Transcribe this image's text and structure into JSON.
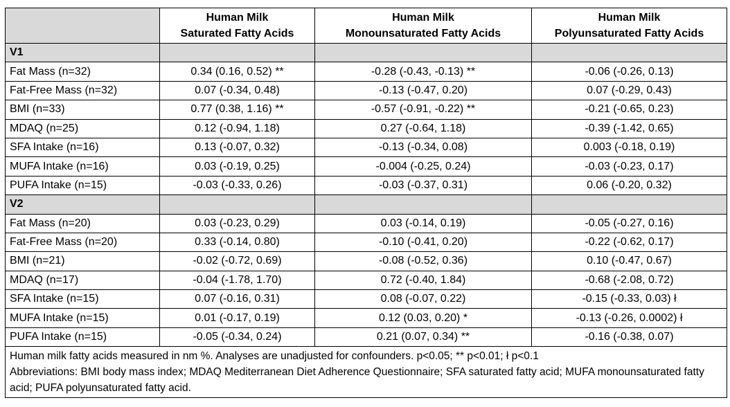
{
  "header": {
    "col1": [
      "Human Milk",
      "Saturated Fatty Acids"
    ],
    "col2": [
      "Human Milk",
      "Monounsaturated Fatty Acids"
    ],
    "col3": [
      "Human Milk",
      "Polyunsaturated Fatty Acids"
    ]
  },
  "sections": [
    {
      "title": "V1",
      "rows": [
        {
          "label": "Fat Mass (n=32)",
          "sfa": "0.34 (0.16, 0.52) **",
          "mufa": "-0.28 (-0.43, -0.13) **",
          "pufa": "-0.06 (-0.26, 0.13)"
        },
        {
          "label": "Fat-Free Mass (n=32)",
          "sfa": "0.07 (-0.34, 0.48)",
          "mufa": "-0.13 (-0.47, 0.20)",
          "pufa": "0.07 (-0.29, 0.43)"
        },
        {
          "label": "BMI (n=33)",
          "sfa": "0.77 (0.38, 1.16) **",
          "mufa": "-0.57 (-0.91, -0.22) **",
          "pufa": "-0.21 (-0.65, 0.23)"
        },
        {
          "label": "MDAQ (n=25)",
          "sfa": "0.12 (-0.94, 1.18)",
          "mufa": "0.27 (-0.64, 1.18)",
          "pufa": "-0.39 (-1.42, 0.65)"
        },
        {
          "label": "SFA Intake (n=16)",
          "sfa": "0.13 (-0.07, 0.32)",
          "mufa": "-0.13 (-0.34, 0.08)",
          "pufa": "0.003 (-0.18, 0.19)"
        },
        {
          "label": "MUFA Intake (n=16)",
          "sfa": "0.03 (-0.19, 0.25)",
          "mufa": "-0.004 (-0.25, 0.24)",
          "pufa": "-0.03 (-0.23, 0.17)"
        },
        {
          "label": "PUFA Intake (n=15)",
          "sfa": "-0.03 (-0.33, 0.26)",
          "mufa": "-0.03 (-0.37, 0.31)",
          "pufa": "0.06 (-0.20, 0.32)"
        }
      ]
    },
    {
      "title": "V2",
      "rows": [
        {
          "label": "Fat Mass (n=20)",
          "sfa": "0.03 (-0.23, 0.29)",
          "mufa": "0.03 (-0.14, 0.19)",
          "pufa": "-0.05 (-0.27, 0.16)"
        },
        {
          "label": "Fat-Free Mass (n=20)",
          "sfa": "0.33 (-0.14, 0.80)",
          "mufa": "-0.10 (-0.41, 0.20)",
          "pufa": "-0.22 (-0.62, 0.17)"
        },
        {
          "label": "BMI (n=21)",
          "sfa": "-0.02 (-0.72, 0.69)",
          "mufa": "-0.08 (-0.52, 0.36)",
          "pufa": "0.10 (-0.47, 0.67)"
        },
        {
          "label": "MDAQ (n=17)",
          "sfa": "-0.04 (-1.78, 1.70)",
          "mufa": "0.72 (-0.40, 1.84)",
          "pufa": "-0.68 (-2.08, 0.72)"
        },
        {
          "label": "SFA Intake (n=15)",
          "sfa": "0.07 (-0.16, 0.31)",
          "mufa": "0.08 (-0.07, 0.22)",
          "pufa": "-0.15 (-0.33, 0.03) ł"
        },
        {
          "label": "MUFA Intake (n=15)",
          "sfa": "0.01 (-0.17, 0.19)",
          "mufa": "0.12 (0.03, 0.20) *",
          "pufa": "-0.13 (-0.26, 0.0002) ł"
        },
        {
          "label": "PUFA Intake (n=15)",
          "sfa": "-0.05 (-0.34, 0.24)",
          "mufa": "0.21 (0.07, 0.34) **",
          "pufa": "-0.16 (-0.38, 0.07)"
        }
      ]
    }
  ],
  "footnote": {
    "line1": "Human milk fatty acids measured in nm %. Analyses are unadjusted for confounders. p<0.05; ** p<0.01; ł p<0.1",
    "line2": "Abbreviations: BMI body mass index; MDAQ Mediterranean Diet Adherence Questionnaire; SFA saturated fatty acid; MUFA monounsaturated fatty acid; PUFA polyunsaturated fatty acid."
  },
  "colors": {
    "section_fill": "#d9d9d9",
    "border": "#000000"
  }
}
